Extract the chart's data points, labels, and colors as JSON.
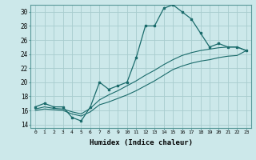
{
  "xlabel": "Humidex (Indice chaleur)",
  "bg_color": "#cce8ea",
  "grid_color": "#a8ccce",
  "line_color": "#1a6b6b",
  "xlim": [
    -0.5,
    23.5
  ],
  "ylim": [
    13.5,
    31.0
  ],
  "xticks": [
    0,
    1,
    2,
    3,
    4,
    5,
    6,
    7,
    8,
    9,
    10,
    11,
    12,
    13,
    14,
    15,
    16,
    17,
    18,
    19,
    20,
    21,
    22,
    23
  ],
  "yticks": [
    14,
    16,
    18,
    20,
    22,
    24,
    26,
    28,
    30
  ],
  "curve1_x": [
    0,
    1,
    2,
    3,
    4,
    5,
    6,
    7,
    8,
    9,
    10,
    11,
    12,
    13,
    14,
    15,
    16,
    17,
    18,
    19,
    20,
    21,
    22,
    23
  ],
  "curve1_y": [
    16.5,
    17.0,
    16.5,
    16.5,
    15.0,
    14.5,
    16.5,
    20.0,
    19.0,
    19.5,
    20.0,
    23.5,
    28.0,
    28.0,
    30.5,
    31.0,
    30.0,
    29.0,
    27.0,
    25.0,
    25.5,
    25.0,
    25.0,
    24.5
  ],
  "curve2_x": [
    0,
    1,
    2,
    3,
    4,
    5,
    6,
    7,
    8,
    9,
    10,
    11,
    12,
    13,
    14,
    15,
    16,
    17,
    18,
    19,
    20,
    21,
    22,
    23
  ],
  "curve2_y": [
    16.2,
    16.5,
    16.3,
    16.2,
    15.8,
    15.5,
    16.3,
    17.5,
    18.2,
    18.8,
    19.5,
    20.2,
    21.0,
    21.7,
    22.5,
    23.2,
    23.8,
    24.2,
    24.5,
    24.7,
    24.9,
    25.0,
    25.0,
    24.5
  ],
  "curve3_x": [
    0,
    1,
    2,
    3,
    4,
    5,
    6,
    7,
    8,
    9,
    10,
    11,
    12,
    13,
    14,
    15,
    16,
    17,
    18,
    19,
    20,
    21,
    22,
    23
  ],
  "curve3_y": [
    16.0,
    16.2,
    16.1,
    16.0,
    15.5,
    15.2,
    15.8,
    16.8,
    17.2,
    17.7,
    18.2,
    18.8,
    19.5,
    20.2,
    21.0,
    21.8,
    22.3,
    22.7,
    23.0,
    23.2,
    23.5,
    23.7,
    23.8,
    24.5
  ]
}
